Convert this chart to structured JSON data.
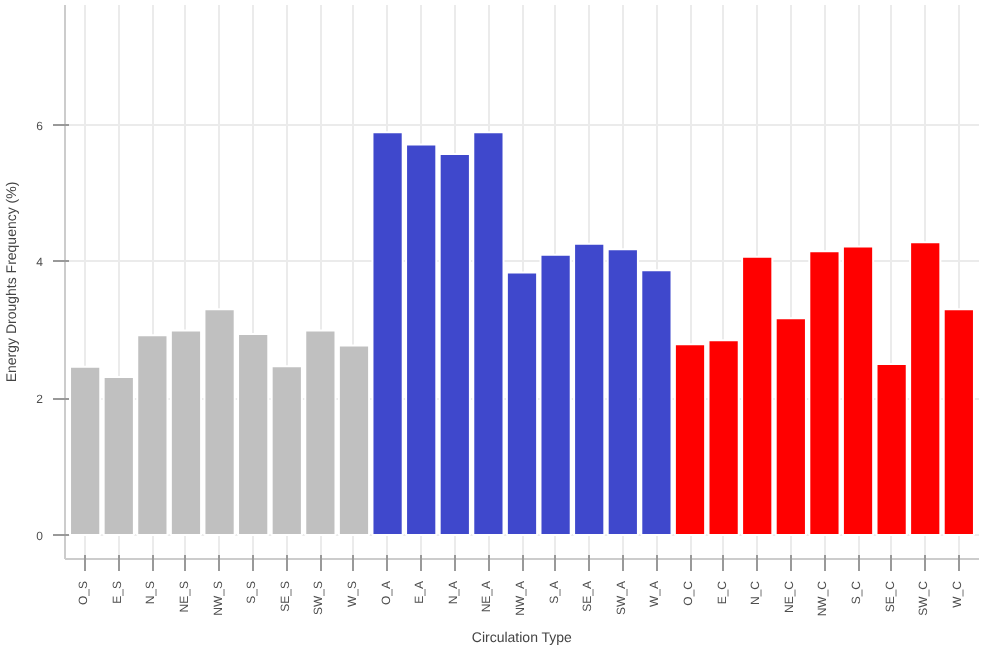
{
  "chart_data": {
    "type": "bar",
    "xlabel": "Circulation Type",
    "ylabel": "Energy Droughts Frequency (%)",
    "categories": [
      "O_S",
      "E_S",
      "N_S",
      "NE_S",
      "NW_S",
      "S_S",
      "SE_S",
      "SW_S",
      "W_S",
      "O_A",
      "E_A",
      "N_A",
      "NE_A",
      "NW_A",
      "S_A",
      "SE_A",
      "SW_A",
      "W_A",
      "O_C",
      "E_C",
      "N_C",
      "NE_C",
      "NW_C",
      "S_C",
      "SE_C",
      "SW_C",
      "W_C"
    ],
    "values": [
      2.46,
      2.31,
      2.92,
      2.99,
      3.3,
      2.94,
      2.47,
      2.99,
      2.77,
      5.89,
      5.71,
      5.57,
      5.89,
      3.84,
      4.1,
      4.26,
      4.18,
      3.87,
      2.79,
      2.85,
      4.07,
      3.17,
      4.15,
      4.22,
      2.5,
      4.28,
      3.3
    ],
    "colors": [
      "#c0c0c0",
      "#c0c0c0",
      "#c0c0c0",
      "#c0c0c0",
      "#c0c0c0",
      "#c0c0c0",
      "#c0c0c0",
      "#c0c0c0",
      "#c0c0c0",
      "#3f48cc",
      "#3f48cc",
      "#3f48cc",
      "#3f48cc",
      "#3f48cc",
      "#3f48cc",
      "#3f48cc",
      "#3f48cc",
      "#3f48cc",
      "#ff0000",
      "#ff0000",
      "#ff0000",
      "#ff0000",
      "#ff0000",
      "#ff0000",
      "#ff0000",
      "#ff0000",
      "#ff0000"
    ],
    "ylim": [
      -0.35,
      7.75
    ],
    "yticks": [
      0,
      2,
      4,
      6
    ],
    "grid": true
  }
}
